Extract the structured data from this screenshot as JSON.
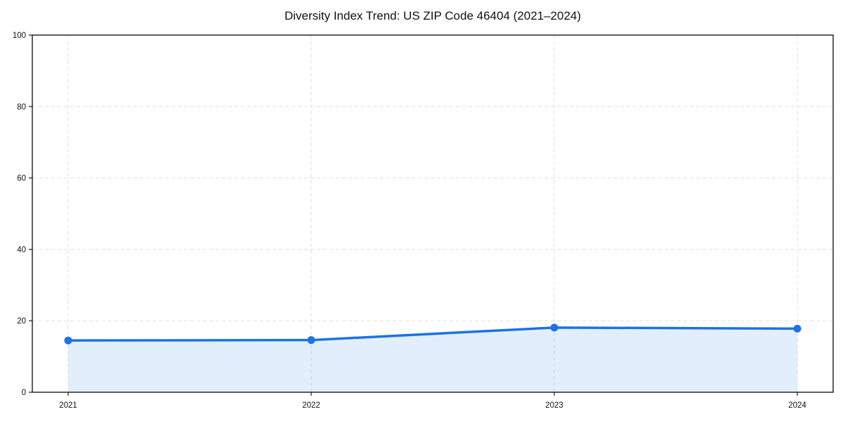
{
  "page": {
    "background": "#ffffff"
  },
  "chart_data": {
    "type": "area",
    "title": "Diversity Index Trend: US ZIP Code 46404 (2021–2024)",
    "x": [
      "2021",
      "2022",
      "2023",
      "2024"
    ],
    "series": [
      {
        "name": "Diversity Index",
        "values": [
          14.5,
          14.6,
          18.1,
          17.8
        ]
      }
    ],
    "xlabel": "",
    "ylabel": "",
    "ylim": [
      0,
      100
    ],
    "yticks": [
      0,
      20,
      40,
      60,
      80,
      100
    ],
    "grid": "on",
    "grid_style": "dashed",
    "legend": "none",
    "marker": "circle",
    "colors": {
      "line": "#1a73e8",
      "marker": "#1a73e8",
      "area_fill": "rgba(26,115,232,0.12)",
      "grid": "#e2e2e2",
      "spine": "#1a1a1a",
      "tick_text": "#111111",
      "title_text": "#111111"
    }
  }
}
